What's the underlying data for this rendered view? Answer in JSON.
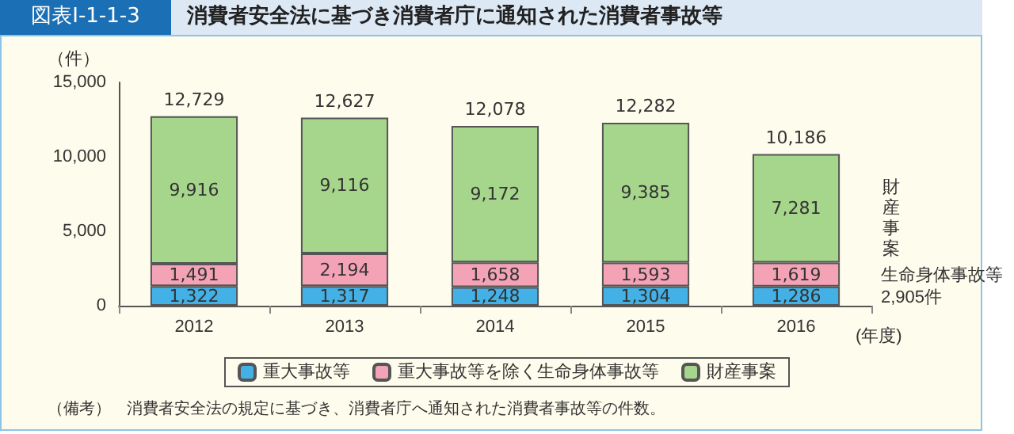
{
  "chart_data": {
    "type": "bar",
    "title": "消費者安全法に基づき消費者庁に通知された消費者事故等",
    "ylabel": "（件）",
    "xlabel": "(年度)",
    "categories": [
      "2012",
      "2013",
      "2014",
      "2015",
      "2016"
    ],
    "stacked": true,
    "series": [
      {
        "name": "重大事故等",
        "color": "#43b1e6",
        "values": [
          1322,
          1317,
          1248,
          1304,
          1286
        ],
        "value_labels": [
          "1,322",
          "1,317",
          "1,248",
          "1,304",
          "1,286"
        ]
      },
      {
        "name": "重大事故等を除く生命身体事故等",
        "color": "#f4a3b6",
        "values": [
          1491,
          2194,
          1658,
          1593,
          1619
        ],
        "value_labels": [
          "1,491",
          "2,194",
          "1,658",
          "1,593",
          "1,619"
        ]
      },
      {
        "name": "財産事案",
        "color": "#a6d68c",
        "values": [
          9916,
          9116,
          9172,
          9385,
          7281
        ],
        "value_labels": [
          "9,916",
          "9,116",
          "9,172",
          "9,385",
          "7,281"
        ]
      }
    ],
    "totals": [
      "12,729",
      "12,627",
      "12,078",
      "12,282",
      "10,186"
    ],
    "ylim": [
      0,
      15000
    ],
    "yticks": [
      0,
      {
        "value": 5000,
        "label": "5,000"
      },
      {
        "value": 10000,
        "label": "10,000"
      },
      {
        "value": 15000,
        "label": "15,000"
      }
    ],
    "legend": "bottom",
    "annotations": [
      "図表Ⅰ-1-1-3",
      "財産事案",
      "生命身体事故等\n2,905件",
      "（備考）　消費者安全法の規定に基づき、消費者庁へ通知された消費者事故等の件数。"
    ]
  }
}
